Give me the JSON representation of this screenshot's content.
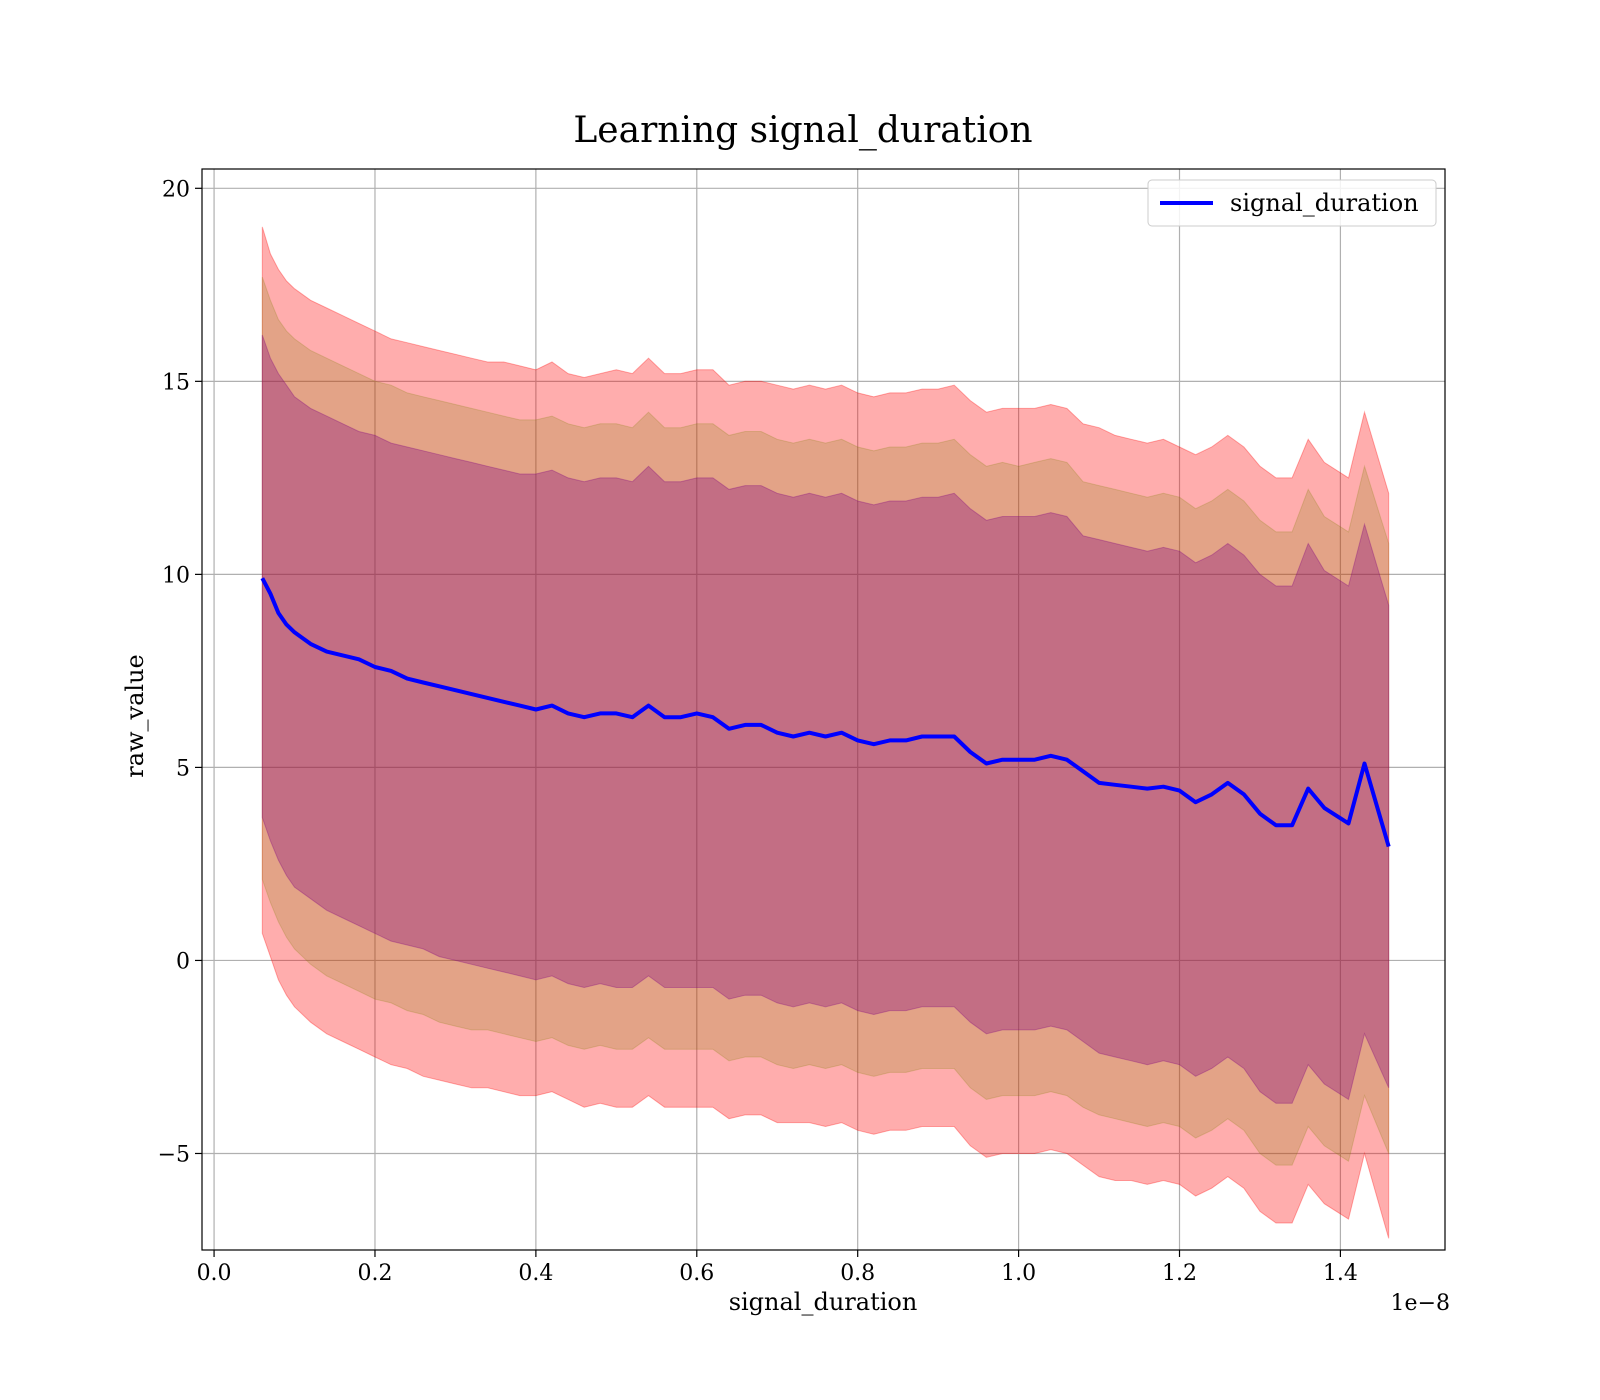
{
  "chart_data": {
    "type": "line",
    "title": "Learning signal_duration",
    "xlabel": "signal_duration",
    "ylabel": "raw_value",
    "x_offset_label": "1e−8",
    "xlim": [
      -0.015,
      1.53
    ],
    "ylim": [
      -7.5,
      20.5
    ],
    "x_ticks": [
      0.0,
      0.2,
      0.4,
      0.6,
      0.8,
      1.0,
      1.2,
      1.4
    ],
    "x_tick_labels": [
      "0.0",
      "0.2",
      "0.4",
      "0.6",
      "0.8",
      "1.0",
      "1.2",
      "1.4"
    ],
    "y_ticks": [
      -5,
      0,
      5,
      10,
      15,
      20
    ],
    "y_tick_labels": [
      "−5",
      "0",
      "5",
      "10",
      "15",
      "20"
    ],
    "grid": true,
    "legend_position": "top-right",
    "series": [
      {
        "name": "signal_duration",
        "color": "#0000ff",
        "x": [
          0.06,
          0.07,
          0.08,
          0.09,
          0.1,
          0.12,
          0.14,
          0.16,
          0.18,
          0.2,
          0.22,
          0.24,
          0.26,
          0.28,
          0.3,
          0.32,
          0.34,
          0.36,
          0.38,
          0.4,
          0.42,
          0.44,
          0.46,
          0.48,
          0.5,
          0.52,
          0.54,
          0.56,
          0.58,
          0.6,
          0.62,
          0.64,
          0.66,
          0.68,
          0.7,
          0.72,
          0.74,
          0.76,
          0.78,
          0.8,
          0.82,
          0.84,
          0.86,
          0.88,
          0.9,
          0.92,
          0.94,
          0.96,
          0.98,
          1.0,
          1.02,
          1.04,
          1.06,
          1.08,
          1.1,
          1.12,
          1.14,
          1.16,
          1.18,
          1.2,
          1.22,
          1.24,
          1.26,
          1.28,
          1.3,
          1.32,
          1.34,
          1.36,
          1.38,
          1.41,
          1.43,
          1.46
        ],
        "values": [
          9.9,
          9.5,
          9.0,
          8.7,
          8.5,
          8.2,
          8.0,
          7.9,
          7.8,
          7.6,
          7.5,
          7.3,
          7.2,
          7.1,
          7.0,
          6.9,
          6.8,
          6.7,
          6.6,
          6.5,
          6.6,
          6.4,
          6.3,
          6.4,
          6.4,
          6.3,
          6.6,
          6.3,
          6.3,
          6.4,
          6.3,
          6.0,
          6.1,
          6.1,
          5.9,
          5.8,
          5.9,
          5.8,
          5.9,
          5.7,
          5.6,
          5.7,
          5.7,
          5.8,
          5.8,
          5.8,
          5.4,
          5.1,
          5.2,
          5.2,
          5.2,
          5.3,
          5.2,
          4.9,
          4.6,
          4.55,
          4.5,
          4.45,
          4.5,
          4.4,
          4.1,
          4.3,
          4.6,
          4.3,
          3.8,
          3.5,
          3.5,
          4.45,
          3.95,
          3.55,
          5.1,
          2.95
        ]
      }
    ],
    "bands": [
      {
        "name": "outer",
        "color": "#ff0000",
        "opacity": 0.32,
        "upper": [
          19.0,
          18.3,
          17.9,
          17.6,
          17.4,
          17.1,
          16.9,
          16.7,
          16.5,
          16.3,
          16.1,
          16.0,
          15.9,
          15.8,
          15.7,
          15.6,
          15.5,
          15.5,
          15.4,
          15.3,
          15.5,
          15.2,
          15.1,
          15.2,
          15.3,
          15.2,
          15.6,
          15.2,
          15.2,
          15.3,
          15.3,
          14.9,
          15.0,
          15.0,
          14.9,
          14.8,
          14.9,
          14.8,
          14.9,
          14.7,
          14.6,
          14.7,
          14.7,
          14.8,
          14.8,
          14.9,
          14.5,
          14.2,
          14.3,
          14.3,
          14.3,
          14.4,
          14.3,
          13.9,
          13.8,
          13.6,
          13.5,
          13.4,
          13.5,
          13.3,
          13.1,
          13.3,
          13.6,
          13.3,
          12.8,
          12.5,
          12.5,
          13.5,
          12.9,
          12.5,
          14.2,
          12.1
        ],
        "lower": [
          0.7,
          0.1,
          -0.5,
          -0.9,
          -1.2,
          -1.6,
          -1.9,
          -2.1,
          -2.3,
          -2.5,
          -2.7,
          -2.8,
          -3.0,
          -3.1,
          -3.2,
          -3.3,
          -3.3,
          -3.4,
          -3.5,
          -3.5,
          -3.4,
          -3.6,
          -3.8,
          -3.7,
          -3.8,
          -3.8,
          -3.5,
          -3.8,
          -3.8,
          -3.8,
          -3.8,
          -4.1,
          -4.0,
          -4.0,
          -4.2,
          -4.2,
          -4.2,
          -4.3,
          -4.2,
          -4.4,
          -4.5,
          -4.4,
          -4.4,
          -4.3,
          -4.3,
          -4.3,
          -4.8,
          -5.1,
          -5.0,
          -5.0,
          -5.0,
          -4.9,
          -5.0,
          -5.3,
          -5.6,
          -5.7,
          -5.7,
          -5.8,
          -5.7,
          -5.8,
          -6.1,
          -5.9,
          -5.6,
          -5.9,
          -6.5,
          -6.8,
          -6.8,
          -5.8,
          -6.3,
          -6.7,
          -5.0,
          -7.2
        ]
      },
      {
        "name": "middle",
        "color": "#808000",
        "opacity": 0.22,
        "upper": [
          17.7,
          17.1,
          16.6,
          16.3,
          16.1,
          15.8,
          15.6,
          15.4,
          15.2,
          15.0,
          14.9,
          14.7,
          14.6,
          14.5,
          14.4,
          14.3,
          14.2,
          14.1,
          14.0,
          14.0,
          14.1,
          13.9,
          13.8,
          13.9,
          13.9,
          13.8,
          14.2,
          13.8,
          13.8,
          13.9,
          13.9,
          13.6,
          13.7,
          13.7,
          13.5,
          13.4,
          13.5,
          13.4,
          13.5,
          13.3,
          13.2,
          13.3,
          13.3,
          13.4,
          13.4,
          13.5,
          13.1,
          12.8,
          12.9,
          12.8,
          12.9,
          13.0,
          12.9,
          12.4,
          12.3,
          12.2,
          12.1,
          12.0,
          12.1,
          12.0,
          11.7,
          11.9,
          12.2,
          11.9,
          11.4,
          11.1,
          11.1,
          12.2,
          11.5,
          11.1,
          12.8,
          10.8
        ],
        "lower": [
          2.1,
          1.5,
          1.0,
          0.6,
          0.3,
          -0.1,
          -0.4,
          -0.6,
          -0.8,
          -1.0,
          -1.1,
          -1.3,
          -1.4,
          -1.6,
          -1.7,
          -1.8,
          -1.8,
          -1.9,
          -2.0,
          -2.1,
          -2.0,
          -2.2,
          -2.3,
          -2.2,
          -2.3,
          -2.3,
          -2.0,
          -2.3,
          -2.3,
          -2.3,
          -2.3,
          -2.6,
          -2.5,
          -2.5,
          -2.7,
          -2.8,
          -2.7,
          -2.8,
          -2.7,
          -2.9,
          -3.0,
          -2.9,
          -2.9,
          -2.8,
          -2.8,
          -2.8,
          -3.3,
          -3.6,
          -3.5,
          -3.5,
          -3.5,
          -3.4,
          -3.5,
          -3.8,
          -4.0,
          -4.1,
          -4.2,
          -4.3,
          -4.2,
          -4.3,
          -4.6,
          -4.4,
          -4.1,
          -4.4,
          -5.0,
          -5.3,
          -5.3,
          -4.3,
          -4.8,
          -5.2,
          -3.5,
          -5.0
        ]
      },
      {
        "name": "inner",
        "color": "#800080",
        "opacity": 0.32,
        "upper": [
          16.2,
          15.6,
          15.2,
          14.9,
          14.6,
          14.3,
          14.1,
          13.9,
          13.7,
          13.6,
          13.4,
          13.3,
          13.2,
          13.1,
          13.0,
          12.9,
          12.8,
          12.7,
          12.6,
          12.6,
          12.7,
          12.5,
          12.4,
          12.5,
          12.5,
          12.4,
          12.8,
          12.4,
          12.4,
          12.5,
          12.5,
          12.2,
          12.3,
          12.3,
          12.1,
          12.0,
          12.1,
          12.0,
          12.1,
          11.9,
          11.8,
          11.9,
          11.9,
          12.0,
          12.0,
          12.1,
          11.7,
          11.4,
          11.5,
          11.5,
          11.5,
          11.6,
          11.5,
          11.0,
          10.9,
          10.8,
          10.7,
          10.6,
          10.7,
          10.6,
          10.3,
          10.5,
          10.8,
          10.5,
          10.0,
          9.7,
          9.7,
          10.8,
          10.1,
          9.7,
          11.3,
          9.2
        ],
        "lower": [
          3.7,
          3.1,
          2.6,
          2.2,
          1.9,
          1.6,
          1.3,
          1.1,
          0.9,
          0.7,
          0.5,
          0.4,
          0.3,
          0.1,
          0.0,
          -0.1,
          -0.2,
          -0.3,
          -0.4,
          -0.5,
          -0.4,
          -0.6,
          -0.7,
          -0.6,
          -0.7,
          -0.7,
          -0.4,
          -0.7,
          -0.7,
          -0.7,
          -0.7,
          -1.0,
          -0.9,
          -0.9,
          -1.1,
          -1.2,
          -1.1,
          -1.2,
          -1.1,
          -1.3,
          -1.4,
          -1.3,
          -1.3,
          -1.2,
          -1.2,
          -1.2,
          -1.6,
          -1.9,
          -1.8,
          -1.8,
          -1.8,
          -1.7,
          -1.8,
          -2.1,
          -2.4,
          -2.5,
          -2.6,
          -2.7,
          -2.6,
          -2.7,
          -3.0,
          -2.8,
          -2.5,
          -2.8,
          -3.4,
          -3.7,
          -3.7,
          -2.7,
          -3.2,
          -3.6,
          -1.9,
          -3.3
        ]
      }
    ]
  }
}
